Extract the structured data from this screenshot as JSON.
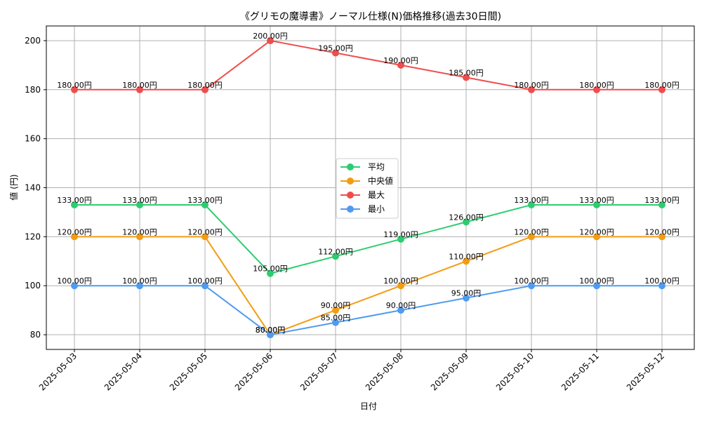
{
  "chart_data": {
    "type": "line",
    "title": "《グリモの魔導書》ノーマル仕様(N)価格推移(過去30日間)",
    "xlabel": "日付",
    "ylabel": "値 (円)",
    "ylim": [
      74,
      206
    ],
    "yticks": [
      80,
      100,
      120,
      140,
      160,
      180,
      200
    ],
    "grid": true,
    "legend_position": "center",
    "value_suffix": "円",
    "categories": [
      "2025-05-03",
      "2025-05-04",
      "2025-05-05",
      "2025-05-06",
      "2025-05-07",
      "2025-05-08",
      "2025-05-09",
      "2025-05-10",
      "2025-05-11",
      "2025-05-12"
    ],
    "series": [
      {
        "name": "平均",
        "color": "#2ecc71",
        "values": [
          133,
          133,
          133,
          105,
          112,
          119,
          126,
          133,
          133,
          133
        ]
      },
      {
        "name": "中央値",
        "color": "#f39c12",
        "values": [
          120,
          120,
          120,
          80,
          90,
          100,
          110,
          120,
          120,
          120
        ]
      },
      {
        "name": "最大",
        "color": "#ef4d4d",
        "values": [
          180,
          180,
          180,
          200,
          195,
          190,
          185,
          180,
          180,
          180
        ]
      },
      {
        "name": "最小",
        "color": "#4f9bf0",
        "values": [
          100,
          100,
          100,
          80,
          85,
          90,
          95,
          100,
          100,
          100
        ]
      }
    ]
  }
}
